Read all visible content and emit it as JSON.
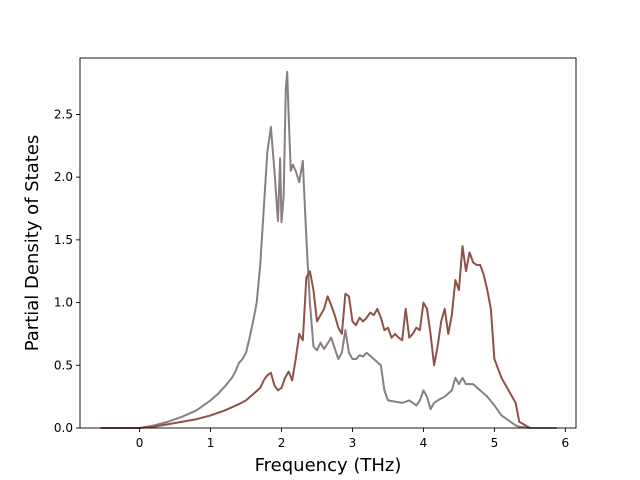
{
  "chart_data": {
    "type": "line",
    "title": "",
    "xlabel": "Frequency (THz)",
    "ylabel": "Partial Density of States",
    "xlim": [
      -0.84,
      6.15
    ],
    "ylim": [
      0,
      2.95
    ],
    "xticks": [
      0,
      1,
      2,
      3,
      4,
      5,
      6
    ],
    "yticks": [
      0.0,
      0.5,
      1.0,
      1.5,
      2.0,
      2.5
    ],
    "xtick_labels": [
      "0",
      "1",
      "2",
      "3",
      "4",
      "5",
      "6"
    ],
    "ytick_labels": [
      "0.0",
      "0.5",
      "1.0",
      "1.5",
      "2.0",
      "2.5"
    ],
    "grid": false,
    "legend": "none",
    "series": [
      {
        "color": "#8a7d84",
        "x": [
          -0.55,
          0.0,
          0.2,
          0.4,
          0.6,
          0.8,
          1.0,
          1.1,
          1.2,
          1.3,
          1.35,
          1.4,
          1.45,
          1.5,
          1.55,
          1.6,
          1.65,
          1.7,
          1.75,
          1.8,
          1.85,
          1.9,
          1.95,
          1.98,
          2.0,
          2.03,
          2.06,
          2.08,
          2.1,
          2.13,
          2.16,
          2.2,
          2.25,
          2.3,
          2.33,
          2.36,
          2.4,
          2.45,
          2.5,
          2.55,
          2.6,
          2.7,
          2.8,
          2.85,
          2.9,
          2.95,
          3.0,
          3.05,
          3.1,
          3.15,
          3.2,
          3.3,
          3.4,
          3.45,
          3.5,
          3.6,
          3.7,
          3.8,
          3.9,
          3.95,
          4.0,
          4.05,
          4.1,
          4.15,
          4.2,
          4.3,
          4.4,
          4.45,
          4.5,
          4.55,
          4.6,
          4.7,
          4.8,
          4.9,
          5.0,
          5.1,
          5.2,
          5.25,
          5.3,
          5.35,
          5.5,
          5.88
        ],
        "y": [
          0.0,
          0.0,
          0.02,
          0.05,
          0.09,
          0.14,
          0.22,
          0.27,
          0.33,
          0.4,
          0.45,
          0.52,
          0.55,
          0.6,
          0.72,
          0.85,
          1.0,
          1.3,
          1.75,
          2.2,
          2.4,
          2.05,
          1.65,
          2.15,
          1.64,
          1.85,
          2.7,
          2.84,
          2.5,
          2.05,
          2.1,
          2.05,
          1.96,
          2.13,
          1.75,
          1.4,
          1.0,
          0.65,
          0.62,
          0.68,
          0.63,
          0.72,
          0.55,
          0.6,
          0.78,
          0.6,
          0.55,
          0.55,
          0.58,
          0.57,
          0.6,
          0.55,
          0.5,
          0.3,
          0.22,
          0.21,
          0.2,
          0.22,
          0.18,
          0.22,
          0.3,
          0.25,
          0.15,
          0.2,
          0.22,
          0.25,
          0.3,
          0.4,
          0.35,
          0.4,
          0.35,
          0.35,
          0.3,
          0.25,
          0.18,
          0.1,
          0.06,
          0.04,
          0.02,
          0.01,
          0.0,
          0.0
        ]
      },
      {
        "color": "#8e5249",
        "x": [
          -0.55,
          0.0,
          0.2,
          0.4,
          0.6,
          0.8,
          1.0,
          1.2,
          1.4,
          1.5,
          1.6,
          1.7,
          1.75,
          1.8,
          1.85,
          1.9,
          1.95,
          2.0,
          2.05,
          2.1,
          2.15,
          2.2,
          2.25,
          2.3,
          2.35,
          2.4,
          2.45,
          2.5,
          2.55,
          2.6,
          2.65,
          2.7,
          2.75,
          2.8,
          2.85,
          2.9,
          2.95,
          3.0,
          3.05,
          3.1,
          3.15,
          3.2,
          3.25,
          3.3,
          3.35,
          3.4,
          3.45,
          3.5,
          3.55,
          3.6,
          3.65,
          3.7,
          3.75,
          3.8,
          3.85,
          3.9,
          3.95,
          4.0,
          4.05,
          4.1,
          4.15,
          4.2,
          4.25,
          4.3,
          4.35,
          4.4,
          4.45,
          4.5,
          4.55,
          4.6,
          4.65,
          4.7,
          4.75,
          4.8,
          4.85,
          4.9,
          4.95,
          5.0,
          5.1,
          5.2,
          5.3,
          5.35,
          5.5
        ],
        "y": [
          0.0,
          0.0,
          0.01,
          0.03,
          0.05,
          0.07,
          0.1,
          0.14,
          0.19,
          0.22,
          0.27,
          0.32,
          0.38,
          0.42,
          0.44,
          0.34,
          0.3,
          0.32,
          0.4,
          0.45,
          0.38,
          0.55,
          0.75,
          0.7,
          1.2,
          1.25,
          1.1,
          0.85,
          0.9,
          0.95,
          1.05,
          0.98,
          0.9,
          0.8,
          0.75,
          1.07,
          1.05,
          0.85,
          0.82,
          0.88,
          0.85,
          0.88,
          0.92,
          0.9,
          0.95,
          0.88,
          0.78,
          0.8,
          0.72,
          0.75,
          0.72,
          0.7,
          0.95,
          0.72,
          0.75,
          0.8,
          0.78,
          1.0,
          0.95,
          0.75,
          0.5,
          0.65,
          0.85,
          0.95,
          0.75,
          0.9,
          1.18,
          1.1,
          1.45,
          1.25,
          1.4,
          1.32,
          1.3,
          1.3,
          1.22,
          1.1,
          0.95,
          0.55,
          0.4,
          0.3,
          0.2,
          0.05,
          0.0
        ]
      }
    ]
  }
}
